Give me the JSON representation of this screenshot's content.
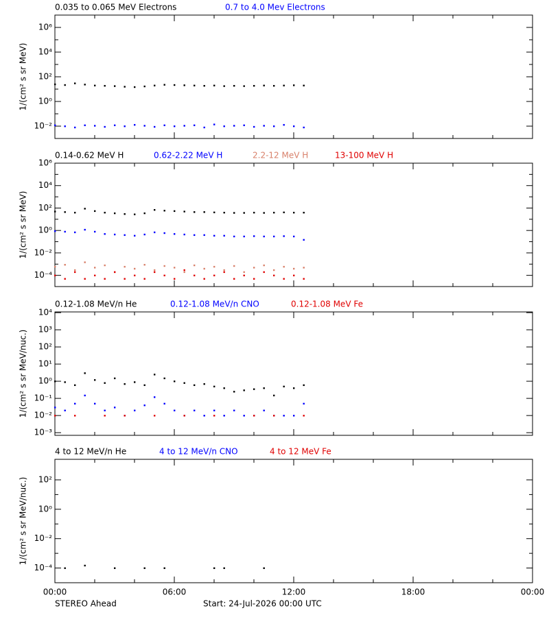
{
  "x_axis": {
    "xlim": [
      0,
      24
    ],
    "xticks": [
      {
        "value": 0,
        "label": "00:00"
      },
      {
        "value": 6,
        "label": "06:00"
      },
      {
        "value": 12,
        "label": "12:00"
      },
      {
        "value": 18,
        "label": "18:00"
      },
      {
        "value": 24,
        "label": "00:00"
      }
    ],
    "x_minor_ticks": [
      2,
      4,
      8,
      10,
      14,
      16,
      20,
      22
    ]
  },
  "footer": {
    "spacecraft": "STEREO Ahead",
    "start": "Start: 24-Jul-2026 00:00 UTC"
  },
  "chart_data": [
    {
      "type": "scatter",
      "log_y": true,
      "y_label": "1/(cm² s sr MeV)",
      "ylim": [
        0.001,
        10000000
      ],
      "yticks": [
        {
          "value": 0.01,
          "label": "10⁻²"
        },
        {
          "value": 1,
          "label": "10⁰"
        },
        {
          "value": 100,
          "label": "10²"
        },
        {
          "value": 10000,
          "label": "10⁴"
        },
        {
          "value": 1000000,
          "label": "10⁶"
        }
      ],
      "y_minor_ticks": [
        0.1,
        10,
        1000,
        100000
      ],
      "x": [
        0,
        0.5,
        1,
        1.5,
        2,
        2.5,
        3,
        3.5,
        4,
        4.5,
        5,
        5.5,
        6,
        6.5,
        7,
        7.5,
        8,
        8.5,
        9,
        9.5,
        10,
        10.5,
        11,
        11.5,
        12,
        12.5
      ],
      "series": [
        {
          "name": "0.035 to 0.065 MeV Electrons",
          "color": "#000000",
          "values": [
            25,
            22,
            30,
            24,
            20,
            19,
            18,
            16,
            15,
            17,
            20,
            23,
            22,
            21,
            20,
            19,
            20,
            18,
            19,
            18,
            19,
            20,
            19,
            20,
            21,
            20
          ]
        },
        {
          "name": "0.7 to 4.0 Mev Electrons",
          "color": "#0000ff",
          "values": [
            0.012,
            0.01,
            0.008,
            0.012,
            0.011,
            0.009,
            0.012,
            0.01,
            0.013,
            0.011,
            0.009,
            0.012,
            0.01,
            0.011,
            0.012,
            0.008,
            0.014,
            0.01,
            0.011,
            0.012,
            0.009,
            0.011,
            0.01,
            0.013,
            0.01,
            0.008
          ]
        }
      ]
    },
    {
      "type": "scatter",
      "log_y": true,
      "y_label": "1/(cm² s sr MeV)",
      "ylim": [
        1e-05,
        1000000
      ],
      "yticks": [
        {
          "value": 0.0001,
          "label": "10⁻⁴"
        },
        {
          "value": 0.01,
          "label": "10⁻²"
        },
        {
          "value": 1,
          "label": "10⁰"
        },
        {
          "value": 100,
          "label": "10²"
        },
        {
          "value": 10000,
          "label": "10⁴"
        },
        {
          "value": 1000000,
          "label": "10⁶"
        }
      ],
      "y_minor_ticks": [
        0.001,
        0.1,
        10,
        1000,
        100000
      ],
      "x": [
        0,
        0.5,
        1,
        1.5,
        2,
        2.5,
        3,
        3.5,
        4,
        4.5,
        5,
        5.5,
        6,
        6.5,
        7,
        7.5,
        8,
        8.5,
        9,
        9.5,
        10,
        10.5,
        11,
        11.5,
        12,
        12.5
      ],
      "series": [
        {
          "name": "0.14-0.62 MeV H",
          "color": "#000000",
          "values": [
            50,
            45,
            40,
            90,
            55,
            40,
            35,
            30,
            28,
            35,
            70,
            60,
            55,
            50,
            45,
            45,
            42,
            40,
            38,
            38,
            40,
            38,
            40,
            42,
            40,
            40
          ]
        },
        {
          "name": "0.62-2.22 MeV H",
          "color": "#0000ff",
          "values": [
            0.9,
            0.8,
            0.7,
            1.2,
            0.8,
            0.5,
            0.45,
            0.4,
            0.35,
            0.45,
            0.7,
            0.6,
            0.5,
            0.45,
            0.4,
            0.4,
            0.35,
            0.35,
            0.3,
            0.3,
            0.32,
            0.3,
            0.3,
            0.32,
            0.3,
            0.15
          ]
        },
        {
          "name": "2.2-12 MeV H",
          "color": "#d8806a",
          "values": [
            0.0006,
            0.0009,
            0.0003,
            0.0015,
            0.0005,
            0.0008,
            0.0002,
            0.0006,
            0.0004,
            0.0009,
            0.0003,
            0.0007,
            0.0005,
            0.0002,
            0.0008,
            0.0004,
            0.0006,
            0.0003,
            0.0007,
            0.0002,
            0.0005,
            0.0008,
            0.0003,
            0.0006,
            0.0004,
            0.0005
          ]
        },
        {
          "name": "13-100 MeV H",
          "color": "#e00000",
          "values": [
            0.0001,
            5e-05,
            0.0002,
            5e-05,
            0.0001,
            5e-05,
            0.0002,
            5e-05,
            0.0001,
            5e-05,
            0.0002,
            0.0001,
            5e-05,
            0.0003,
            0.0001,
            5e-05,
            0.0001,
            0.0002,
            5e-05,
            0.0001,
            5e-05,
            0.0002,
            0.0001,
            5e-05,
            0.0001,
            5e-05
          ]
        }
      ]
    },
    {
      "type": "scatter",
      "log_y": true,
      "y_label": "1/(cm² s sr MeV/nuc.)",
      "ylim": [
        0.0007,
        11000
      ],
      "yticks": [
        {
          "value": 0.001,
          "label": "10⁻³"
        },
        {
          "value": 0.01,
          "label": "10⁻²"
        },
        {
          "value": 0.1,
          "label": "10⁻¹"
        },
        {
          "value": 1,
          "label": "10⁰"
        },
        {
          "value": 10,
          "label": "10¹"
        },
        {
          "value": 100,
          "label": "10²"
        },
        {
          "value": 1000,
          "label": "10³"
        },
        {
          "value": 10000,
          "label": "10⁴"
        }
      ],
      "x": [
        0,
        0.5,
        1,
        1.5,
        2,
        2.5,
        3,
        3.5,
        4,
        4.5,
        5,
        5.5,
        6,
        6.5,
        7,
        7.5,
        8,
        8.5,
        9,
        9.5,
        10,
        10.5,
        11,
        11.5,
        12,
        12.5
      ],
      "series": [
        {
          "name": "0.12-1.08 MeV/n He",
          "color": "#000000",
          "values": [
            1,
            0.9,
            0.6,
            3,
            1.2,
            0.8,
            1.5,
            0.7,
            0.9,
            0.6,
            2.5,
            1.5,
            1,
            0.8,
            0.6,
            0.7,
            0.5,
            0.4,
            0.25,
            0.3,
            0.35,
            0.4,
            0.15,
            0.5,
            0.4,
            0.6
          ]
        },
        {
          "name": "0.12-1.08 MeV/n CNO",
          "color": "#0000ff",
          "values": [
            0.03,
            0.02,
            0.05,
            0.15,
            0.05,
            0.02,
            0.03,
            0.01,
            0.02,
            0.04,
            0.12,
            0.05,
            0.02,
            0.01,
            0.02,
            0.01,
            0.02,
            0.01,
            0.02,
            0.01,
            0.01,
            0.02,
            0.01,
            0.01,
            0.01,
            0.05
          ]
        },
        {
          "name": "0.12-1.08 MeV Fe",
          "color": "#e00000",
          "values": [
            0.01,
            null,
            0.01,
            null,
            null,
            0.01,
            null,
            0.01,
            null,
            null,
            0.01,
            null,
            null,
            0.01,
            null,
            null,
            0.01,
            null,
            null,
            null,
            0.01,
            null,
            0.01,
            null,
            null,
            0.01
          ]
        }
      ]
    },
    {
      "type": "scatter",
      "log_y": true,
      "y_label": "1/(cm² s sr MeV/nuc.)",
      "ylim": [
        1e-05,
        2500
      ],
      "yticks": [
        {
          "value": 0.0001,
          "label": "10⁻⁴"
        },
        {
          "value": 0.01,
          "label": "10⁻²"
        },
        {
          "value": 1,
          "label": "10⁰"
        },
        {
          "value": 100,
          "label": "10²"
        }
      ],
      "y_minor_ticks": [
        0.001,
        0.1,
        10
      ],
      "x": [
        0,
        0.5,
        1,
        1.5,
        2,
        2.5,
        3,
        3.5,
        4,
        4.5,
        5,
        5.5,
        6,
        6.5,
        7,
        7.5,
        8,
        8.5,
        9,
        9.5,
        10,
        10.5,
        11,
        11.5,
        12,
        12.5
      ],
      "series": [
        {
          "name": "4 to 12 MeV/n He",
          "color": "#000000",
          "values": [
            null,
            0.0001,
            null,
            0.00015,
            null,
            null,
            0.0001,
            null,
            null,
            0.0001,
            null,
            0.0001,
            null,
            null,
            null,
            null,
            0.0001,
            0.0001,
            null,
            null,
            null,
            0.0001,
            null,
            null,
            null,
            null
          ]
        },
        {
          "name": "4 to 12 MeV/n CNO",
          "color": "#0000ff",
          "values": [
            null,
            null,
            null,
            null,
            null,
            null,
            null,
            null,
            null,
            null,
            null,
            null,
            null,
            null,
            null,
            null,
            null,
            null,
            null,
            null,
            null,
            null,
            null,
            null,
            null,
            null
          ]
        },
        {
          "name": "4 to 12 MeV Fe",
          "color": "#e00000",
          "values": [
            null,
            null,
            null,
            null,
            null,
            null,
            null,
            null,
            null,
            null,
            null,
            null,
            null,
            null,
            null,
            null,
            null,
            null,
            null,
            null,
            null,
            null,
            null,
            null,
            null,
            null
          ]
        }
      ]
    }
  ]
}
